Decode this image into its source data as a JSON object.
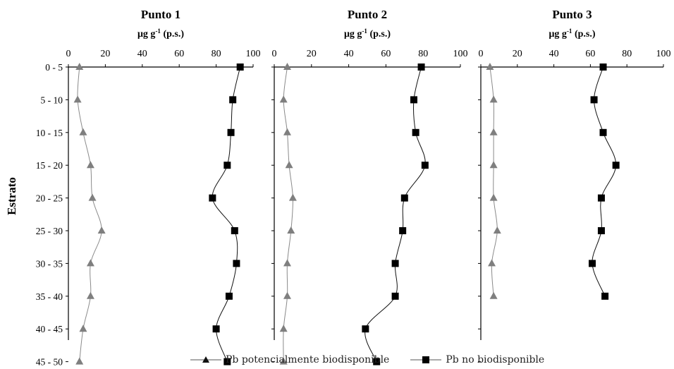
{
  "ylabel": "Estrato",
  "legend": [
    {
      "label": "Pb potencialmente biodisponible",
      "marker": "triangle",
      "color": "#7f7f7f"
    },
    {
      "label": "Pb no biodisponible",
      "marker": "square",
      "color": "#000000"
    }
  ],
  "chart_data": [
    {
      "type": "line",
      "title": "Punto 1",
      "xlabel": "μg g-1 (p.s.)",
      "xlim": [
        0,
        100
      ],
      "xticks": [
        0,
        20,
        40,
        60,
        80,
        100
      ],
      "categories": [
        "0 - 5",
        "5 - 10",
        "10 - 15",
        "15 - 20",
        "20 - 25",
        "25 - 30",
        "30 - 35",
        "35 - 40",
        "40 - 45",
        "45 - 50"
      ],
      "series": [
        {
          "name": "Pb potencialmente biodisponible",
          "values": [
            6,
            5,
            8,
            12,
            13,
            18,
            12,
            12,
            8,
            6
          ]
        },
        {
          "name": "Pb no biodisponible",
          "values": [
            93,
            89,
            88,
            86,
            78,
            90,
            91,
            87,
            80,
            86
          ]
        }
      ]
    },
    {
      "type": "line",
      "title": "Punto 2",
      "xlabel": "μg g-1 (p.s.)",
      "xlim": [
        0,
        100
      ],
      "xticks": [
        0,
        20,
        40,
        60,
        80,
        100
      ],
      "categories": [
        "0 - 5",
        "5 - 10",
        "10 - 15",
        "15 - 20",
        "20 - 25",
        "25 - 30",
        "30 - 35",
        "35 - 40",
        "40 - 45",
        "45 - 50"
      ],
      "series": [
        {
          "name": "Pb potencialmente biodisponible",
          "values": [
            7,
            5,
            7,
            8,
            10,
            9,
            7,
            7,
            5,
            5
          ]
        },
        {
          "name": "Pb no biodisponible",
          "values": [
            79,
            75,
            76,
            81,
            70,
            69,
            65,
            65,
            49,
            55
          ]
        }
      ]
    },
    {
      "type": "line",
      "title": "Punto 3",
      "xlabel": "μg g-1 (p.s.)",
      "xlim": [
        0,
        100
      ],
      "xticks": [
        0,
        20,
        40,
        60,
        80,
        100
      ],
      "categories": [
        "0 - 5",
        "5 - 10",
        "10 - 15",
        "15 - 20",
        "20 - 25",
        "25 - 30",
        "30 - 35",
        "35 - 40",
        "40 - 45",
        "45 - 50"
      ],
      "series": [
        {
          "name": "Pb potencialmente biodisponible",
          "values": [
            5,
            7,
            7,
            7,
            7,
            9,
            6,
            7,
            null,
            null
          ]
        },
        {
          "name": "Pb no biodisponible",
          "values": [
            67,
            62,
            67,
            74,
            66,
            66,
            61,
            68,
            null,
            null
          ]
        }
      ]
    }
  ]
}
